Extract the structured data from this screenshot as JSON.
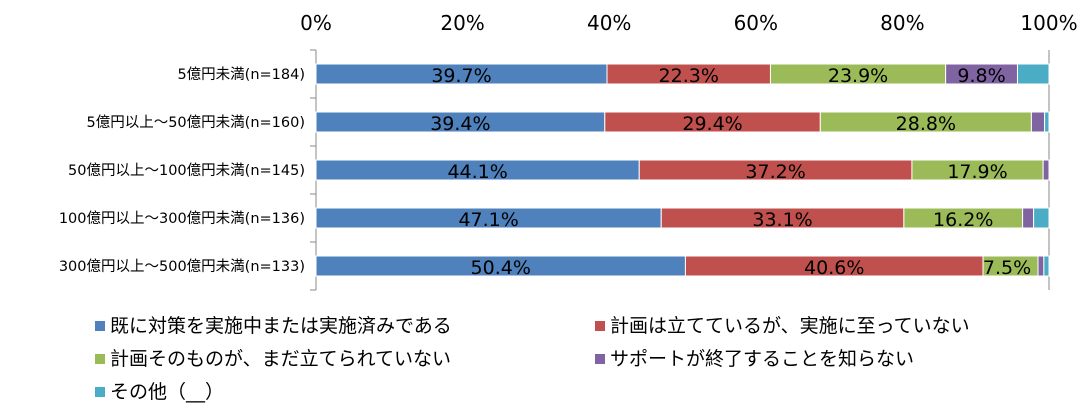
{
  "chart_data": {
    "type": "bar",
    "orientation": "horizontal",
    "stacked": true,
    "categories": [
      "5億円未満(n=184)",
      "5億円以上～50億円未満(n=160)",
      "50億円以上～100億円未満(n=145)",
      "100億円以上～300億円未満(n=136)",
      "300億円以上～500億円未満(n=133)"
    ],
    "xlim": [
      0,
      100
    ],
    "xticks": [
      "0%",
      "20%",
      "40%",
      "60%",
      "80%",
      "100%"
    ],
    "legend_position": "bottom",
    "series": [
      {
        "name": "既に対策を実施中または実施済みである",
        "color": "#4f81bd",
        "values": [
          39.7,
          39.4,
          44.1,
          47.1,
          50.4
        ],
        "labels": [
          "39.7%",
          "39.4%",
          "44.1%",
          "47.1%",
          "50.4%"
        ]
      },
      {
        "name": "計画は立てているが、実施に至っていない",
        "color": "#c0504d",
        "values": [
          22.3,
          29.4,
          37.2,
          33.1,
          40.6
        ],
        "labels": [
          "22.3%",
          "29.4%",
          "37.2%",
          "33.1%",
          "40.6%"
        ]
      },
      {
        "name": "計画そのものが、まだ立てられていない",
        "color": "#9bbb59",
        "values": [
          23.9,
          28.8,
          17.9,
          16.2,
          7.5
        ],
        "labels": [
          "23.9%",
          "28.8%",
          "17.9%",
          "16.2%",
          "7.5%"
        ]
      },
      {
        "name": "サポートが終了することを知らない",
        "color": "#8064a2",
        "values": [
          9.8,
          1.8,
          0.8,
          1.5,
          0.8
        ],
        "labels": [
          "9.8%",
          "",
          "",
          "",
          ""
        ]
      },
      {
        "name": "その他（__）",
        "color": "#4bacc6",
        "values": [
          4.3,
          0.6,
          0.0,
          2.1,
          0.7
        ],
        "labels": [
          "",
          "",
          "",
          "",
          ""
        ]
      }
    ]
  }
}
